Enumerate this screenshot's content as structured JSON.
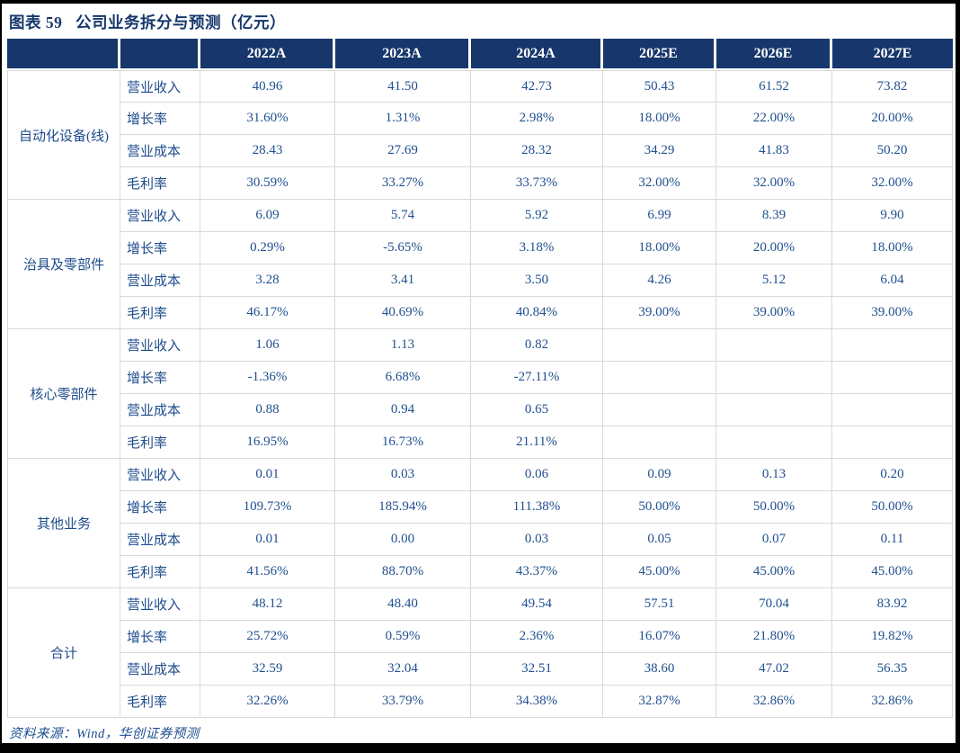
{
  "title": "图表 59   公司业务拆分与预测（亿元）",
  "source": "资料来源：Wind，华创证券预测",
  "colors": {
    "header_bg": "#17376c",
    "title_text": "#17376c",
    "body_text": "#20508f",
    "grid_border": "#d9d9d9",
    "outer_frame": "#000000",
    "header_text": "#ffffff"
  },
  "table": {
    "col_headers": [
      "",
      "",
      "2022A",
      "2023A",
      "2024A",
      "2025E",
      "2026E",
      "2027E"
    ],
    "metric_labels": [
      "营业收入",
      "增长率",
      "营业成本",
      "毛利率"
    ],
    "groups": [
      {
        "name": "自动化设备(线)",
        "rows": [
          [
            "40.96",
            "41.50",
            "42.73",
            "50.43",
            "61.52",
            "73.82"
          ],
          [
            "31.60%",
            "1.31%",
            "2.98%",
            "18.00%",
            "22.00%",
            "20.00%"
          ],
          [
            "28.43",
            "27.69",
            "28.32",
            "34.29",
            "41.83",
            "50.20"
          ],
          [
            "30.59%",
            "33.27%",
            "33.73%",
            "32.00%",
            "32.00%",
            "32.00%"
          ]
        ]
      },
      {
        "name": "治具及零部件",
        "rows": [
          [
            "6.09",
            "5.74",
            "5.92",
            "6.99",
            "8.39",
            "9.90"
          ],
          [
            "0.29%",
            "-5.65%",
            "3.18%",
            "18.00%",
            "20.00%",
            "18.00%"
          ],
          [
            "3.28",
            "3.41",
            "3.50",
            "4.26",
            "5.12",
            "6.04"
          ],
          [
            "46.17%",
            "40.69%",
            "40.84%",
            "39.00%",
            "39.00%",
            "39.00%"
          ]
        ]
      },
      {
        "name": "核心零部件",
        "rows": [
          [
            "1.06",
            "1.13",
            "0.82",
            "",
            "",
            ""
          ],
          [
            "-1.36%",
            "6.68%",
            "-27.11%",
            "",
            "",
            ""
          ],
          [
            "0.88",
            "0.94",
            "0.65",
            "",
            "",
            ""
          ],
          [
            "16.95%",
            "16.73%",
            "21.11%",
            "",
            "",
            ""
          ]
        ]
      },
      {
        "name": "其他业务",
        "rows": [
          [
            "0.01",
            "0.03",
            "0.06",
            "0.09",
            "0.13",
            "0.20"
          ],
          [
            "109.73%",
            "185.94%",
            "111.38%",
            "50.00%",
            "50.00%",
            "50.00%"
          ],
          [
            "0.01",
            "0.00",
            "0.03",
            "0.05",
            "0.07",
            "0.11"
          ],
          [
            "41.56%",
            "88.70%",
            "43.37%",
            "45.00%",
            "45.00%",
            "45.00%"
          ]
        ]
      },
      {
        "name": "合计",
        "rows": [
          [
            "48.12",
            "48.40",
            "49.54",
            "57.51",
            "70.04",
            "83.92"
          ],
          [
            "25.72%",
            "0.59%",
            "2.36%",
            "16.07%",
            "21.80%",
            "19.82%"
          ],
          [
            "32.59",
            "32.04",
            "32.51",
            "38.60",
            "47.02",
            "56.35"
          ],
          [
            "32.26%",
            "33.79%",
            "34.38%",
            "32.87%",
            "32.86%",
            "32.86%"
          ]
        ]
      }
    ]
  }
}
